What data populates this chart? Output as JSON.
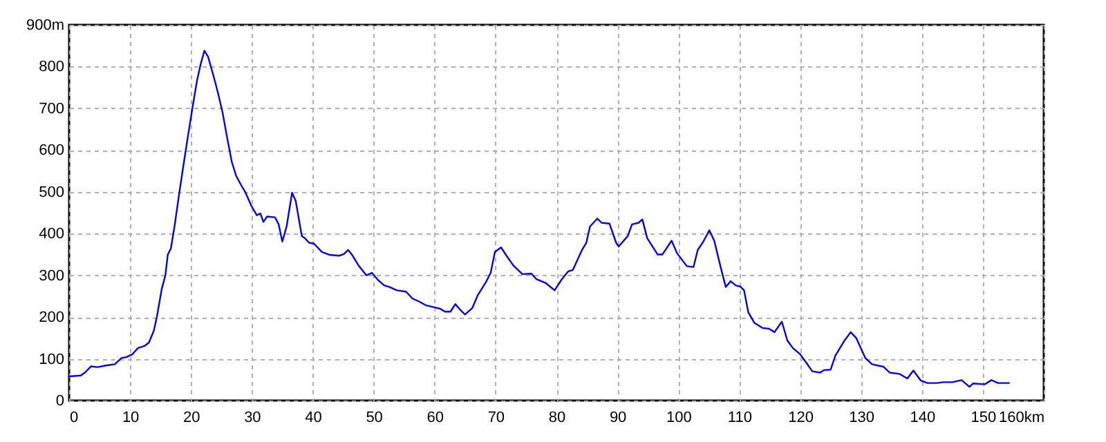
{
  "chart_data": {
    "type": "line",
    "x": [
      0,
      1.9,
      2.6,
      3.6,
      4.7,
      6,
      7.5,
      8.6,
      9.4,
      10.4,
      11.3,
      12.4,
      13.1,
      13.9,
      14.4,
      15.2,
      15.8,
      16.2,
      16.7,
      17.3,
      18,
      18.8,
      19.5,
      20.3,
      21,
      21.6,
      22.2,
      22.8,
      23.7,
      24.4,
      25.2,
      25.9,
      26.7,
      27.4,
      28.2,
      28.9,
      29.9,
      30.8,
      31.4,
      31.9,
      32.5,
      33.8,
      34.4,
      35,
      35.7,
      36.6,
      37.2,
      38.2,
      38.7,
      39.4,
      40.2,
      41.5,
      42.8,
      44.3,
      45.1,
      45.8,
      46.4,
      47.5,
      48.8,
      49.7,
      50.7,
      51.7,
      52.6,
      53.8,
      55.3,
      56.4,
      57.5,
      58.6,
      59.8,
      60.9,
      61.7,
      62.6,
      63.4,
      64.3,
      65,
      66.2,
      67.1,
      68.4,
      69.2,
      69.9,
      70.9,
      71.8,
      72.9,
      74.4,
      75.9,
      76.7,
      78.2,
      79.7,
      80.8,
      81.9,
      82.7,
      84.2,
      84.9,
      85.5,
      86.7,
      87.4,
      88.7,
      89.8,
      90.2,
      91.7,
      92.4,
      93.5,
      94.1,
      94.9,
      96.6,
      97.4,
      98.9,
      99.8,
      101.4,
      102.5,
      103.2,
      104,
      105.1,
      105.9,
      107,
      107.8,
      108.6,
      109.4,
      110.2,
      110.8,
      111.5,
      112.5,
      113.8,
      114.9,
      115.8,
      117,
      117.9,
      118.8,
      120,
      121.1,
      122,
      123.3,
      123.9,
      125,
      125.8,
      127.3,
      128.3,
      129.2,
      130.7,
      131.8,
      133.7,
      134.7,
      136.3,
      137.6,
      138.6,
      139.8,
      140.9,
      142.4,
      143.5,
      145,
      146.5,
      147.8,
      148.4,
      150.3,
      151.4,
      152.5,
      154.4
    ],
    "series": [
      {
        "color": "#0000ff",
        "values": [
          58,
          60,
          67,
          82,
          80,
          84,
          87,
          102,
          104,
          111,
          126,
          131,
          139,
          167,
          200,
          267,
          300,
          350,
          364,
          417,
          489,
          567,
          633,
          706,
          767,
          806,
          838,
          824,
          778,
          739,
          689,
          633,
          572,
          539,
          517,
          500,
          467,
          444,
          448,
          428,
          441,
          439,
          422,
          381,
          417,
          498,
          478,
          394,
          389,
          378,
          376,
          356,
          349,
          347,
          351,
          361,
          350,
          324,
          300,
          306,
          289,
          276,
          272,
          264,
          261,
          244,
          237,
          228,
          224,
          220,
          213,
          213,
          231,
          216,
          206,
          222,
          253,
          283,
          306,
          356,
          367,
          347,
          324,
          303,
          304,
          291,
          282,
          264,
          289,
          309,
          313,
          361,
          378,
          417,
          436,
          426,
          424,
          378,
          369,
          394,
          422,
          426,
          434,
          389,
          350,
          350,
          383,
          353,
          322,
          320,
          361,
          378,
          408,
          383,
          317,
          272,
          286,
          276,
          273,
          264,
          211,
          186,
          174,
          172,
          164,
          189,
          144,
          126,
          111,
          89,
          70,
          67,
          73,
          74,
          108,
          144,
          164,
          150,
          102,
          87,
          81,
          67,
          64,
          53,
          72,
          48,
          42,
          42,
          44,
          44,
          49,
          33,
          41,
          39,
          49,
          42,
          42
        ]
      }
    ],
    "xlim": [
      0,
      160
    ],
    "xticks": [
      0,
      10,
      20,
      30,
      40,
      50,
      60,
      70,
      80,
      90,
      100,
      110,
      120,
      130,
      140,
      150,
      {
        "value": 160,
        "label": "160km"
      }
    ],
    "ylim": [
      0,
      900
    ],
    "yticks": [
      0,
      100,
      200,
      300,
      400,
      500,
      600,
      700,
      800,
      {
        "value": 900,
        "label": "900m"
      }
    ],
    "grid": true,
    "marker": "none",
    "line_style": "solid"
  }
}
